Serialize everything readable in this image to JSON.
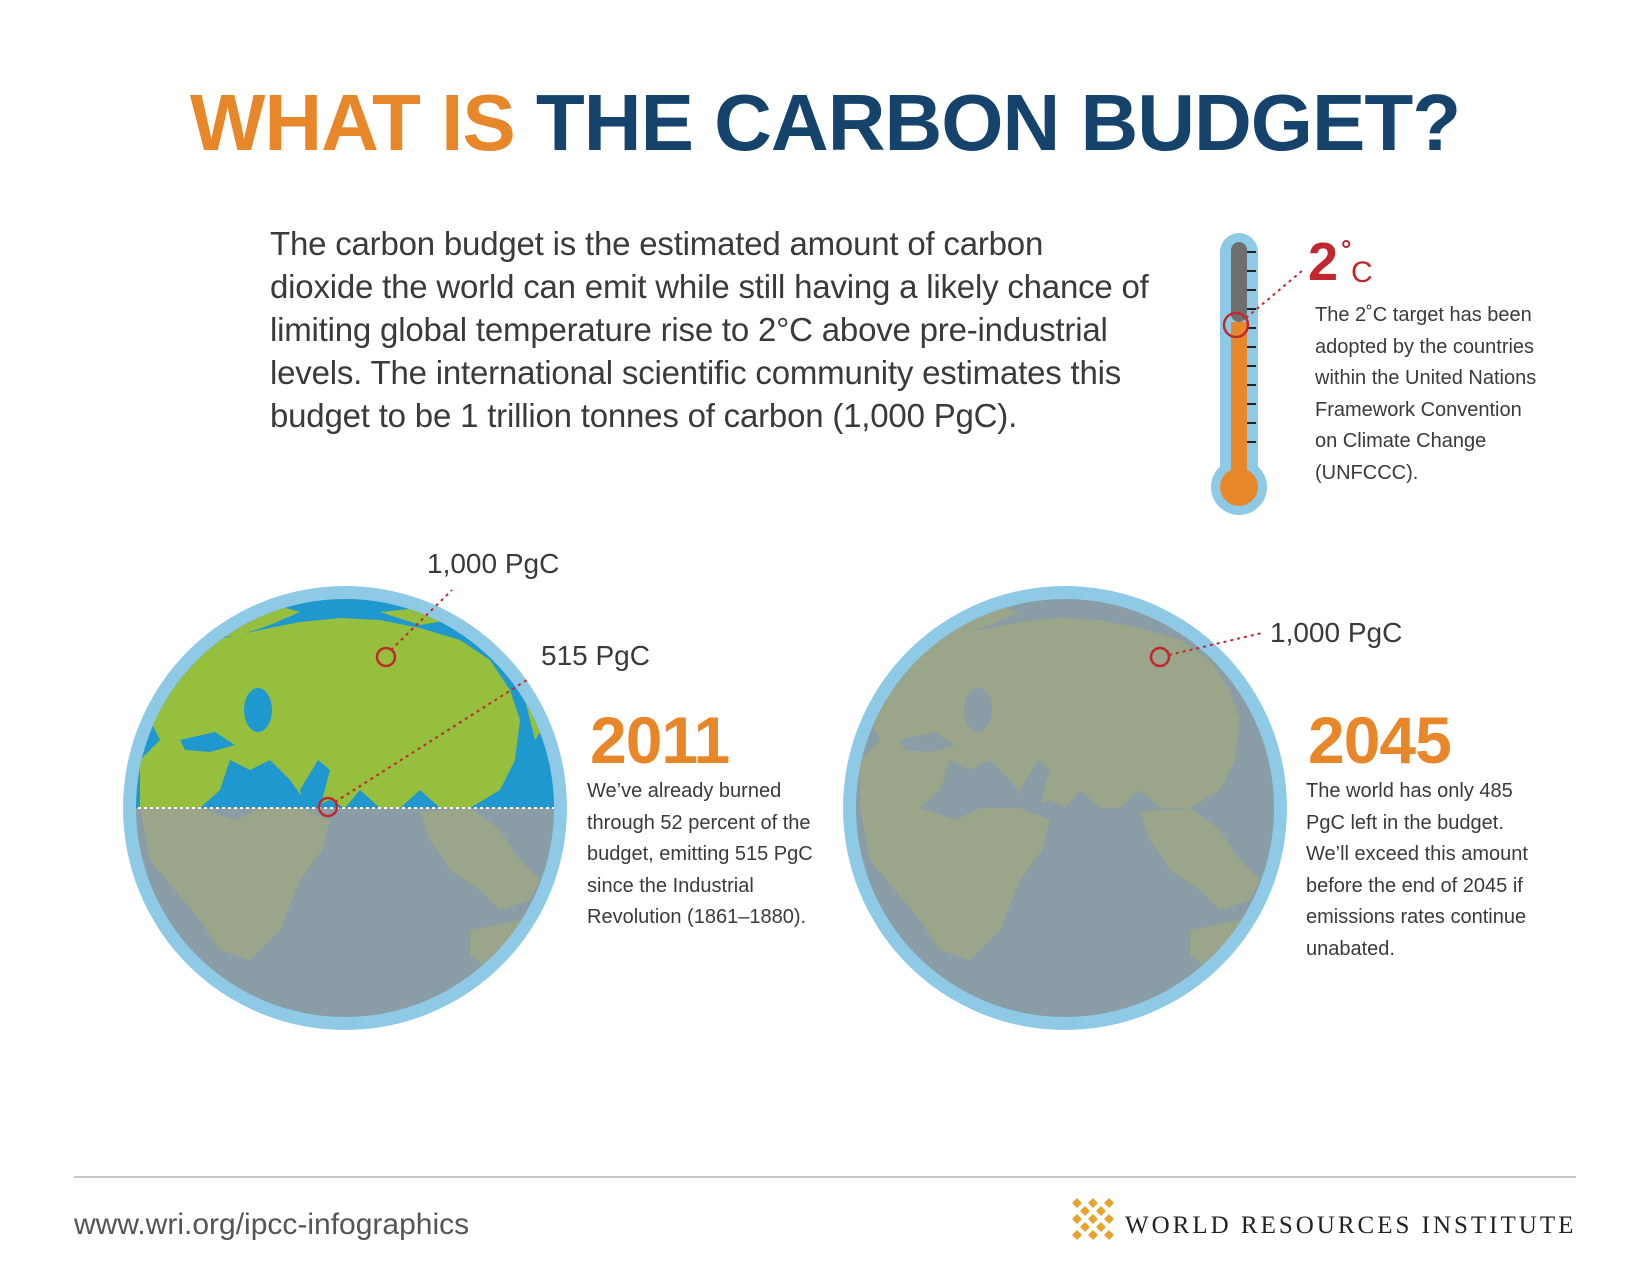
{
  "title": {
    "part1": "WHAT IS",
    "part2": "THE CARBON BUDGET?"
  },
  "intro": "The carbon budget is the estimated amount of carbon dioxide the world can emit while still having a likely chance of limiting global temperature rise to 2°C above pre-industrial levels. The international scientific community estimates this budget to be 1 trillion tonnes of carbon (1,000 PgC).",
  "thermometer": {
    "value": "2",
    "degree_symbol": "°",
    "unit": "C",
    "note": "The 2˚C target has been adopted by the countries within the United Nations Framework Convention on Climate Change (UNFCCC)."
  },
  "globe_2011": {
    "total_label": "1,000 PgC",
    "used_label": "515 PgC",
    "year": "2011",
    "text": "We’ve already burned through 52 percent of the budget, emitting 515 PgC since the Industrial Revolution (1861–1880).",
    "used_fraction": 0.52
  },
  "globe_2045": {
    "total_label": "1,000 PgC",
    "year": "2045",
    "text": "The world has only 485 PgC left in the budget. We’ll exceed this amount before the end of 2045 if emissions rates continue unabated."
  },
  "footer": {
    "url": "www.wri.org/ipcc-infographics",
    "organization": "WORLD RESOURCES INSTITUTE"
  },
  "colors": {
    "orange": "#e8862a",
    "navy": "#16436b",
    "red": "#c0282e",
    "globe_ring": "#8ecae6",
    "ocean": "#1f97cf",
    "land": "#95bf3d",
    "grey_ocean": "#8a9ca6",
    "grey_land": "#9aa58a"
  }
}
